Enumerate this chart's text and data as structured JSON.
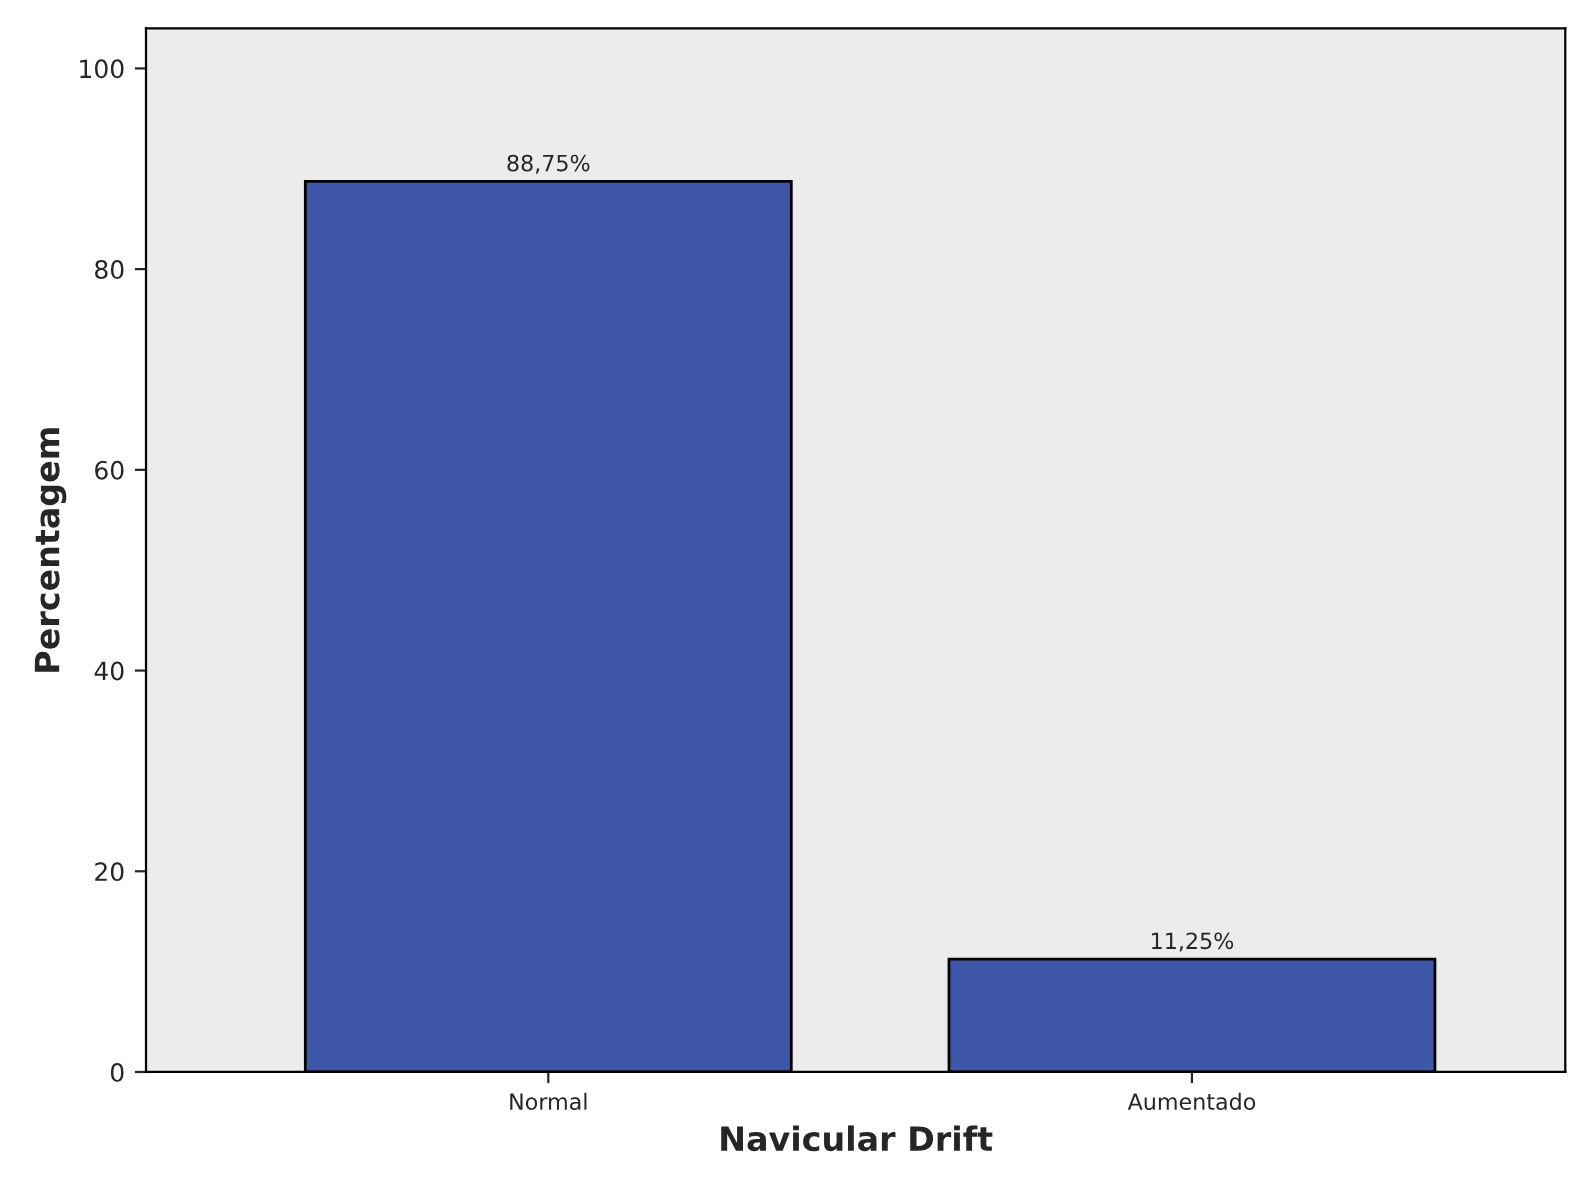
{
  "chart_data": {
    "type": "bar",
    "xlabel": "Navicular Drift",
    "ylabel": "Percentagem",
    "categories": [
      "Normal",
      "Aumentado"
    ],
    "series": [
      {
        "color": "#3f57a8",
        "values": [
          88.75,
          11.25
        ]
      }
    ],
    "value_labels": [
      "88,75%",
      "11,25%"
    ],
    "ylim": [
      0,
      104
    ],
    "yticks": [
      0,
      20,
      40,
      60,
      80,
      100
    ],
    "grid": false,
    "legend": false
  }
}
